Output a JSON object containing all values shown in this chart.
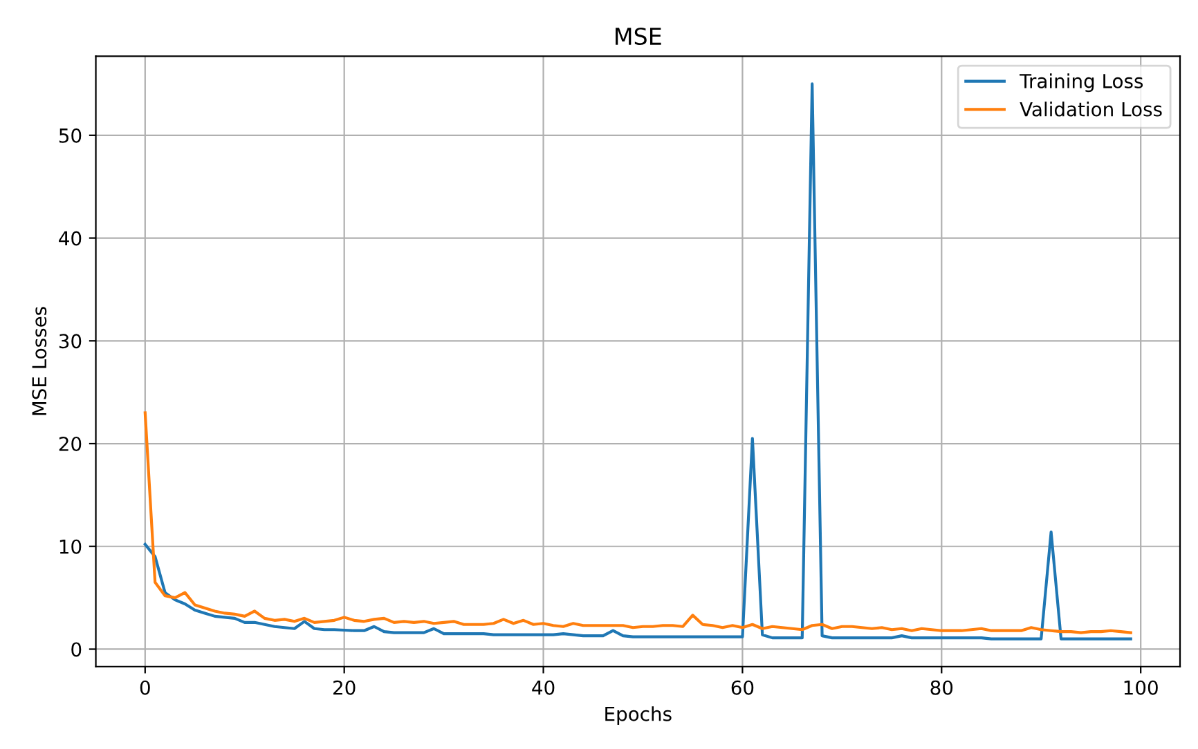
{
  "chart_data": {
    "type": "line",
    "title": "MSE",
    "xlabel": "Epochs",
    "ylabel": "MSE Losses",
    "x": [
      0,
      1,
      2,
      3,
      4,
      5,
      6,
      7,
      8,
      9,
      10,
      11,
      12,
      13,
      14,
      15,
      16,
      17,
      18,
      19,
      20,
      21,
      22,
      23,
      24,
      25,
      26,
      27,
      28,
      29,
      30,
      31,
      32,
      33,
      34,
      35,
      36,
      37,
      38,
      39,
      40,
      41,
      42,
      43,
      44,
      45,
      46,
      47,
      48,
      49,
      50,
      51,
      52,
      53,
      54,
      55,
      56,
      57,
      58,
      59,
      60,
      61,
      62,
      63,
      64,
      65,
      66,
      67,
      68,
      69,
      70,
      71,
      72,
      73,
      74,
      75,
      76,
      77,
      78,
      79,
      80,
      81,
      82,
      83,
      84,
      85,
      86,
      87,
      88,
      89,
      90,
      91,
      92,
      93,
      94,
      95,
      96,
      97,
      98,
      99
    ],
    "series": [
      {
        "name": "Training Loss",
        "color": "#1f77b4",
        "values": [
          10.2,
          9.0,
          5.5,
          4.8,
          4.4,
          3.8,
          3.5,
          3.2,
          3.1,
          3.0,
          2.6,
          2.6,
          2.4,
          2.2,
          2.1,
          2.0,
          2.7,
          2.0,
          1.9,
          1.9,
          1.85,
          1.8,
          1.8,
          2.2,
          1.7,
          1.6,
          1.6,
          1.6,
          1.6,
          2.0,
          1.5,
          1.5,
          1.5,
          1.5,
          1.5,
          1.4,
          1.4,
          1.4,
          1.4,
          1.4,
          1.4,
          1.4,
          1.5,
          1.4,
          1.3,
          1.3,
          1.3,
          1.8,
          1.3,
          1.2,
          1.2,
          1.2,
          1.2,
          1.2,
          1.2,
          1.2,
          1.2,
          1.2,
          1.2,
          1.2,
          1.2,
          20.5,
          1.4,
          1.1,
          1.1,
          1.1,
          1.1,
          55.0,
          1.3,
          1.1,
          1.1,
          1.1,
          1.1,
          1.1,
          1.1,
          1.1,
          1.3,
          1.1,
          1.1,
          1.1,
          1.1,
          1.1,
          1.1,
          1.1,
          1.1,
          1.0,
          1.0,
          1.0,
          1.0,
          1.0,
          1.0,
          11.4,
          1.0,
          1.0,
          1.0,
          1.0,
          1.0,
          1.0,
          1.0,
          1.0
        ]
      },
      {
        "name": "Validation Loss",
        "color": "#ff7f0e",
        "values": [
          23.0,
          6.5,
          5.2,
          5.0,
          5.5,
          4.3,
          4.0,
          3.7,
          3.5,
          3.4,
          3.2,
          3.7,
          3.0,
          2.8,
          2.9,
          2.7,
          3.0,
          2.6,
          2.7,
          2.8,
          3.1,
          2.8,
          2.7,
          2.9,
          3.0,
          2.6,
          2.7,
          2.6,
          2.7,
          2.5,
          2.6,
          2.7,
          2.4,
          2.4,
          2.4,
          2.5,
          2.9,
          2.5,
          2.8,
          2.4,
          2.5,
          2.3,
          2.2,
          2.5,
          2.3,
          2.3,
          2.3,
          2.3,
          2.3,
          2.1,
          2.2,
          2.2,
          2.3,
          2.3,
          2.2,
          3.3,
          2.4,
          2.3,
          2.1,
          2.3,
          2.1,
          2.4,
          2.0,
          2.2,
          2.1,
          2.0,
          1.9,
          2.3,
          2.4,
          2.0,
          2.2,
          2.2,
          2.1,
          2.0,
          2.1,
          1.9,
          2.0,
          1.8,
          2.0,
          1.9,
          1.8,
          1.8,
          1.8,
          1.9,
          2.0,
          1.8,
          1.8,
          1.8,
          1.8,
          2.1,
          1.9,
          1.8,
          1.7,
          1.7,
          1.6,
          1.7,
          1.7,
          1.8,
          1.7,
          1.6
        ]
      }
    ],
    "xlim": [
      -4.95,
      103.95
    ],
    "xticks": [
      0,
      20,
      40,
      60,
      80,
      100
    ],
    "ylim": [
      -1.7,
      57.7
    ],
    "yticks": [
      0,
      10,
      20,
      30,
      40,
      50
    ],
    "grid": true,
    "legend": "top right",
    "marker": "none",
    "line_style": "solid"
  }
}
